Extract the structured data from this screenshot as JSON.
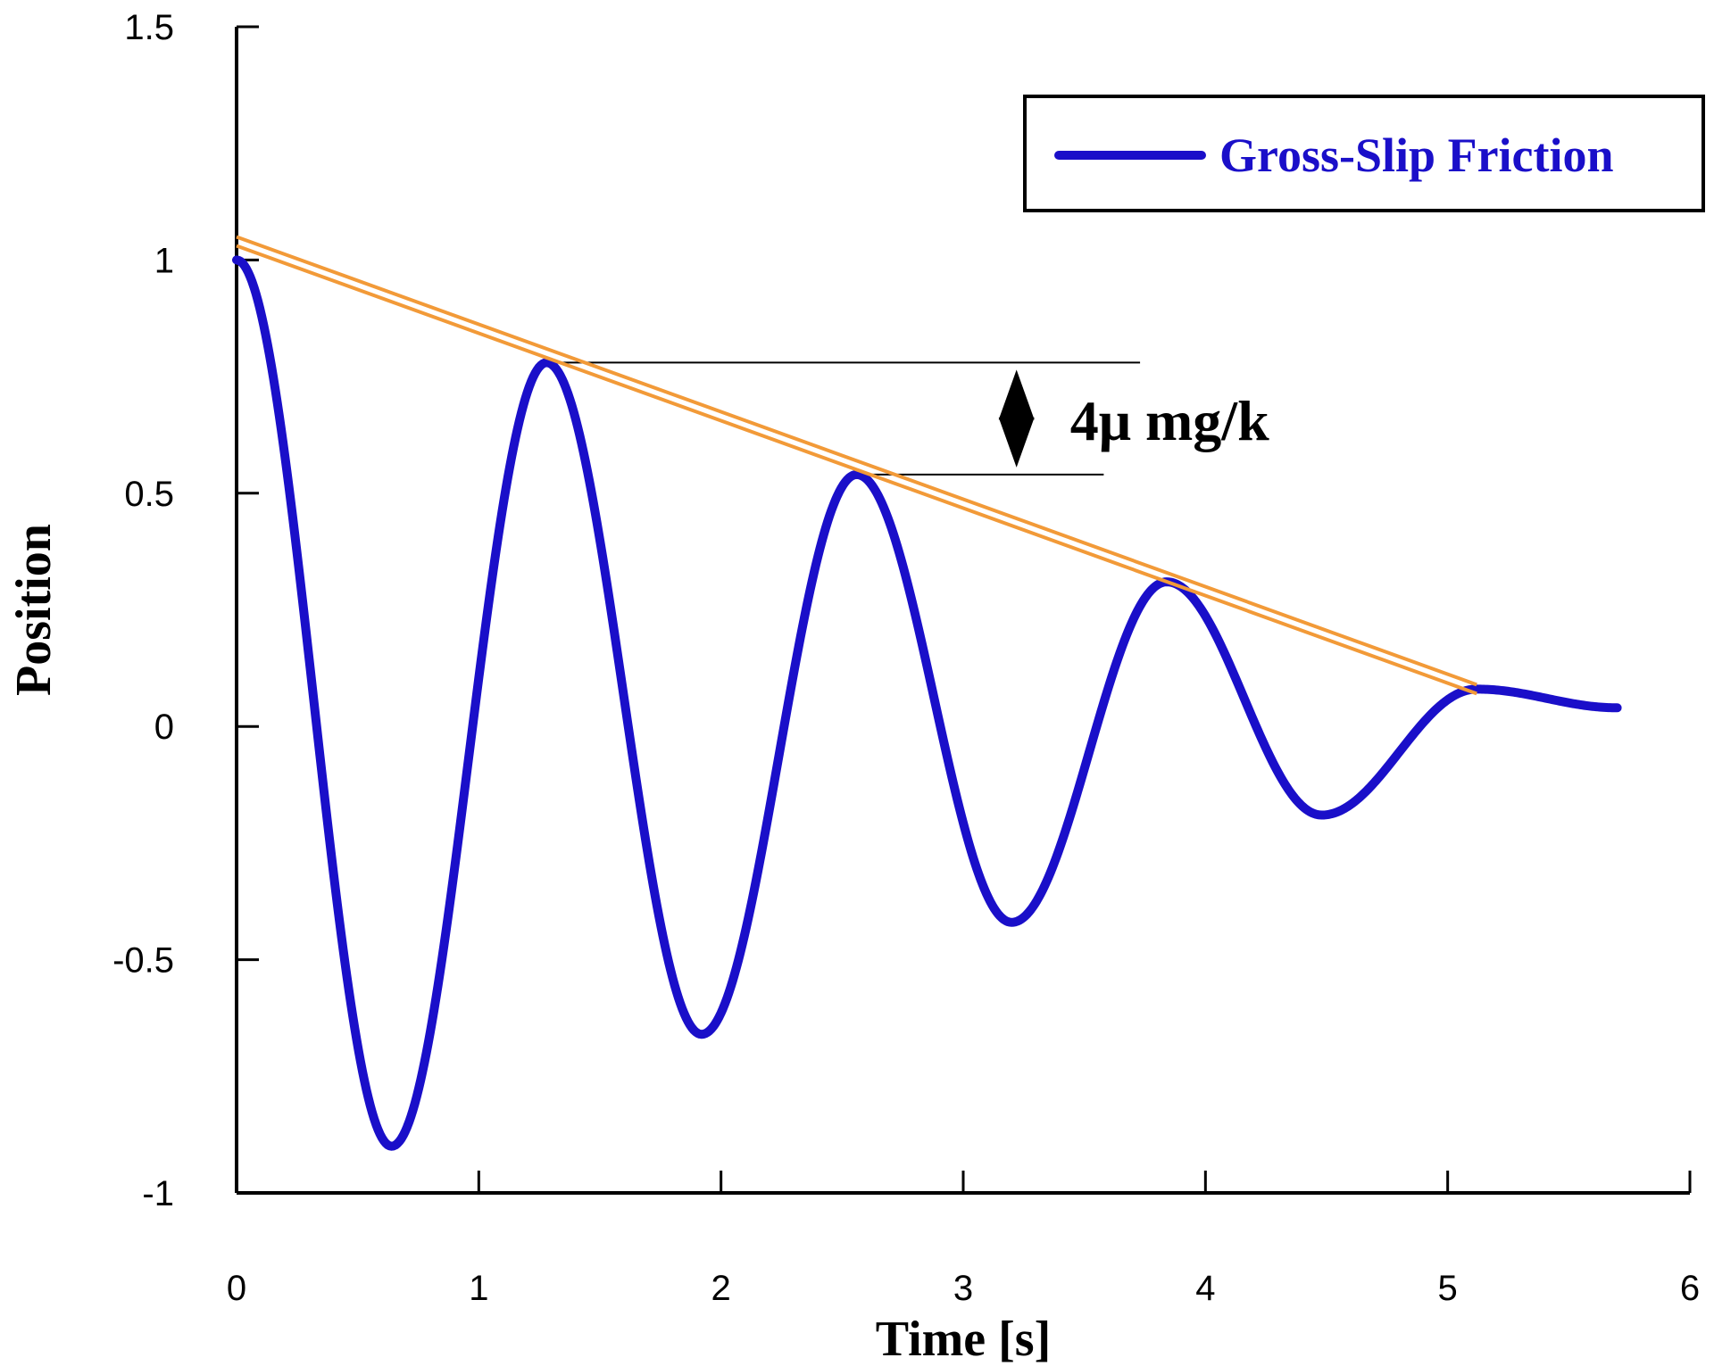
{
  "chart_data": {
    "type": "line",
    "xlabel": "Time [s]",
    "ylabel": "Position",
    "xlim": [
      0,
      6
    ],
    "ylim": [
      -1,
      1.5
    ],
    "xticks": [
      0,
      1,
      2,
      3,
      4,
      5,
      6
    ],
    "yticks": [
      -1,
      -0.5,
      0,
      0.5,
      1,
      1.5
    ],
    "xtick_labels": [
      "0",
      "1",
      "2",
      "3",
      "4",
      "5",
      "6"
    ],
    "ytick_labels": [
      "-1",
      "-0.5",
      "0",
      "0.5",
      "1",
      "1.5"
    ],
    "grid": false,
    "legend": {
      "position": "top-right",
      "entries": [
        "Gross-Slip Friction"
      ]
    },
    "series": [
      {
        "name": "Gross-Slip Friction",
        "color": "#1a0fc9",
        "points": [
          [
            0.0,
            1.0
          ],
          [
            0.64,
            -0.9
          ],
          [
            1.28,
            0.78
          ],
          [
            1.92,
            -0.66
          ],
          [
            2.56,
            0.54
          ],
          [
            3.2,
            -0.42
          ],
          [
            3.84,
            0.31
          ],
          [
            4.48,
            -0.19
          ],
          [
            5.12,
            0.08
          ],
          [
            5.7,
            0.04
          ]
        ]
      }
    ],
    "envelope": {
      "color": "#f29a38",
      "start": [
        0.0,
        1.04
      ],
      "end": [
        5.12,
        0.08
      ]
    },
    "annotations": [
      {
        "text": "4μ mg/k",
        "from_y": 0.78,
        "to_y": 0.54,
        "x": 3.22
      }
    ]
  }
}
